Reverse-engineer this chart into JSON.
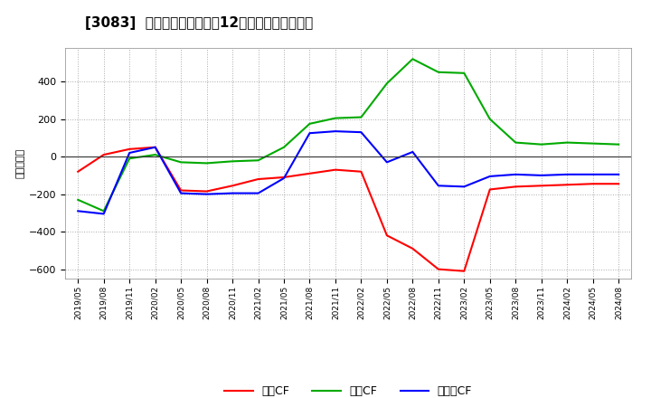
{
  "title": "[3083]  キャッシュフローの12か月移動合計の推移",
  "ylabel": "（百万円）",
  "background_color": "#ffffff",
  "plot_bg_color": "#ffffff",
  "grid_color": "#aaaaaa",
  "x_labels": [
    "2019/05",
    "2019/08",
    "2019/11",
    "2020/02",
    "2020/05",
    "2020/08",
    "2020/11",
    "2021/02",
    "2021/05",
    "2021/08",
    "2021/11",
    "2022/02",
    "2022/05",
    "2022/08",
    "2022/11",
    "2023/02",
    "2023/05",
    "2023/08",
    "2023/11",
    "2024/02",
    "2024/05",
    "2024/08"
  ],
  "operating_cf": [
    -80,
    10,
    40,
    50,
    -180,
    -185,
    -155,
    -120,
    -110,
    -90,
    -70,
    -80,
    -420,
    -490,
    -600,
    -610,
    -175,
    -160,
    -155,
    -150,
    -145,
    -145
  ],
  "investing_cf": [
    -230,
    -290,
    -10,
    10,
    -30,
    -35,
    -25,
    -20,
    50,
    175,
    205,
    210,
    390,
    520,
    450,
    445,
    200,
    75,
    65,
    75,
    70,
    65
  ],
  "free_cf": [
    -290,
    -305,
    20,
    50,
    -195,
    -200,
    -195,
    -195,
    -115,
    125,
    135,
    130,
    -30,
    25,
    -155,
    -160,
    -105,
    -95,
    -100,
    -95,
    -95,
    -95
  ],
  "ylim": [
    -650,
    580
  ],
  "yticks": [
    -600,
    -400,
    -200,
    0,
    200,
    400
  ],
  "operating_color": "#ff0000",
  "investing_color": "#00aa00",
  "free_color": "#0000ff",
  "legend_labels": [
    "営業CF",
    "投資CF",
    "フリーCF"
  ]
}
